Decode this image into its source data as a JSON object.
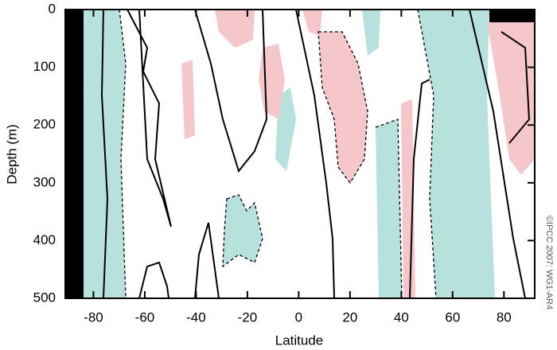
{
  "chart_data": {
    "type": "contour",
    "x_label": "Latitude",
    "y_label": "Depth (m)",
    "annotation": "©IPCC 2007: WG1-AR4",
    "xlim": [
      -91,
      92
    ],
    "xticks": [
      -80,
      -60,
      -40,
      -20,
      0,
      20,
      40,
      60,
      80
    ],
    "ylim": [
      0,
      500
    ],
    "yticks": [
      0,
      100,
      200,
      300,
      400,
      500
    ],
    "y_inverted": true
  }
}
